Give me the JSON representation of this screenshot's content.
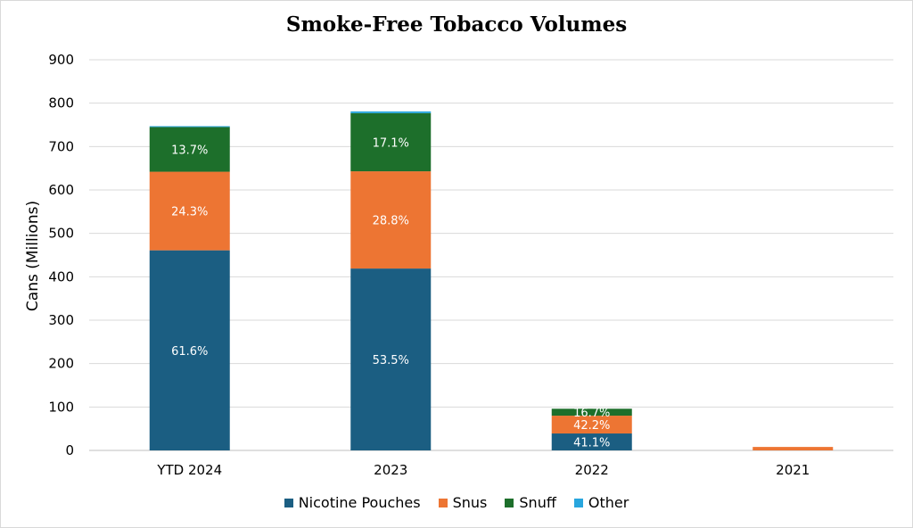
{
  "chart_data": {
    "type": "bar",
    "stacked": true,
    "title": "Smoke-Free Tobacco Volumes",
    "xlabel": "",
    "ylabel": "Cans (Millions)",
    "ylim": [
      0,
      900
    ],
    "yticks": [
      "0",
      "100",
      "200",
      "300",
      "400",
      "500",
      "600",
      "700",
      "800",
      "900"
    ],
    "grid": true,
    "legend_position": "bottom",
    "categories": [
      "YTD 2024",
      "2023",
      "2022",
      "2021"
    ],
    "series": [
      {
        "name": "Nicotine Pouches",
        "color": "#1b5e82",
        "values": [
          461,
          419,
          39,
          0
        ],
        "labels": [
          "61.6%",
          "53.5%",
          "41.1%",
          ""
        ]
      },
      {
        "name": "Snus",
        "color": "#ed7533",
        "values": [
          181,
          224,
          41,
          8
        ],
        "labels": [
          "24.3%",
          "28.8%",
          "42.2%",
          ""
        ]
      },
      {
        "name": "Snuff",
        "color": "#1d6f2b",
        "values": [
          103,
          134,
          16,
          0
        ],
        "labels": [
          "13.7%",
          "17.1%",
          "16.7%",
          ""
        ]
      },
      {
        "name": "Other",
        "color": "#28a6de",
        "values": [
          2,
          4,
          0,
          0
        ],
        "labels": [
          "",
          "",
          "",
          ""
        ]
      }
    ]
  }
}
